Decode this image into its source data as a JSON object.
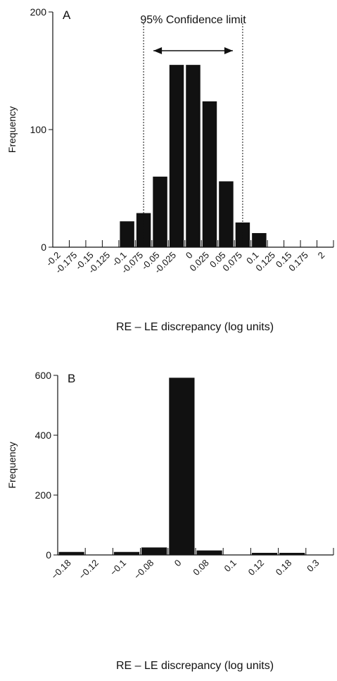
{
  "chart_data": [
    {
      "type": "bar",
      "panel_label": "A",
      "categories": [
        "-0.2",
        "-0.175",
        "-0.15",
        "-0.125",
        "-0.1",
        "-0.075",
        "-0.05",
        "-0.025",
        "0",
        "0.025",
        "0.05",
        "0.075",
        "0.1",
        "0.125",
        "0.15",
        "0.175",
        "2"
      ],
      "values": [
        0,
        0,
        0,
        0,
        22,
        29,
        60,
        155,
        155,
        124,
        56,
        21,
        12,
        0,
        0,
        0,
        0
      ],
      "xlabel": "RE – LE discrepancy (log units)",
      "ylabel": "Frequency",
      "yticks": [
        0,
        100,
        200
      ],
      "ylim": [
        0,
        200
      ],
      "annotation": "95% Confidence limit",
      "confidence_limits": [
        "-0.075",
        "0.075"
      ],
      "grid": false
    },
    {
      "type": "bar",
      "panel_label": "B",
      "categories": [
        "−0.18",
        "−0.12",
        "−0.1",
        "−0.08",
        "0",
        "0.08",
        "0.1",
        "0.12",
        "0.18",
        "0.3"
      ],
      "values": [
        10,
        0,
        10,
        25,
        592,
        15,
        0,
        7,
        7,
        0
      ],
      "xlabel": "RE – LE discrepancy (log units)",
      "ylabel": "Frequency",
      "yticks": [
        0,
        200,
        400,
        600
      ],
      "ylim": [
        0,
        600
      ],
      "grid": false
    }
  ]
}
